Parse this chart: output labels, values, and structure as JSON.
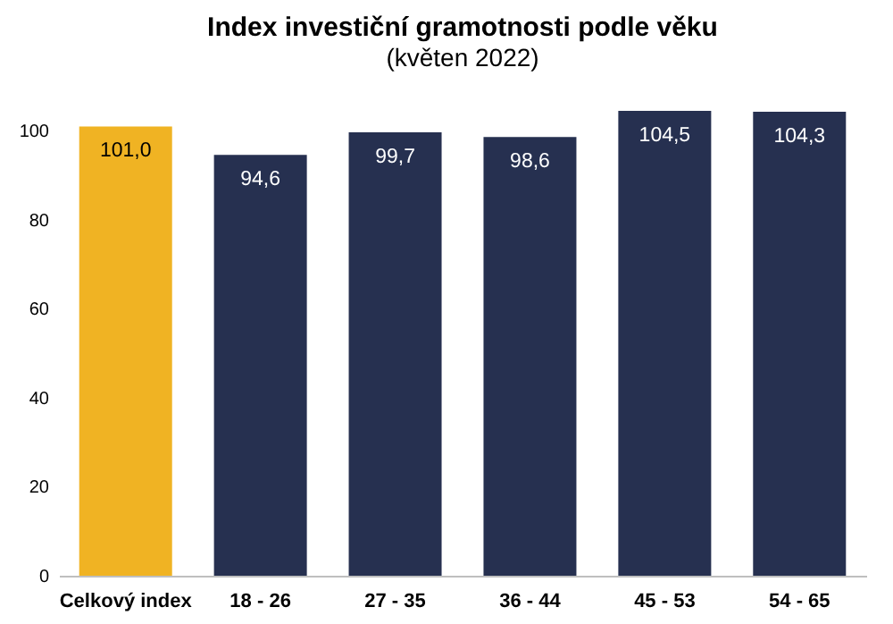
{
  "chart_data": {
    "type": "bar",
    "title": "Index investiční gramotnosti podle věku",
    "subtitle": "(květen 2022)",
    "categories": [
      "Celkový index",
      "18 - 26",
      "27 - 35",
      "36 - 44",
      "45 - 53",
      "54 - 65"
    ],
    "values": [
      101.0,
      94.6,
      99.7,
      98.6,
      104.5,
      104.3
    ],
    "colors": [
      "#f0b323",
      "#263050",
      "#263050",
      "#263050",
      "#263050",
      "#263050"
    ],
    "value_labels": [
      "101,0",
      "94,6",
      "99,7",
      "98,6",
      "104,5",
      "104,3"
    ],
    "ylim": [
      0,
      104.5
    ],
    "yticks": [
      0,
      20,
      40,
      60,
      80,
      100
    ],
    "grid": false
  }
}
